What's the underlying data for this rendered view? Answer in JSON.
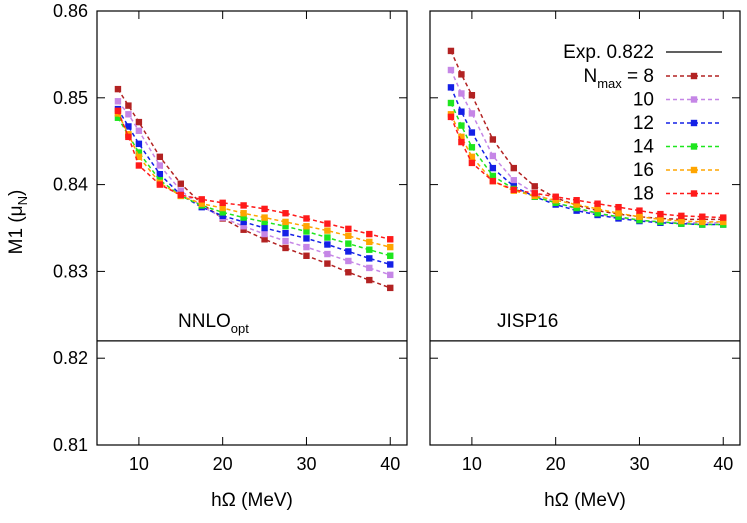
{
  "chart_data": {
    "type": "line",
    "ylabel": "M1 (μ",
    "ylabel_sub": "N",
    "ylabel_end": ")",
    "xlabel": "hΩ (MeV)",
    "xlim": [
      5,
      42
    ],
    "ylim": [
      0.81,
      0.86
    ],
    "xticks": [
      10,
      20,
      30,
      40
    ],
    "yticks": [
      0.81,
      0.82,
      0.83,
      0.84,
      0.85,
      0.86
    ],
    "ytick_labels": [
      "0.81",
      "0.82",
      "0.83",
      "0.84",
      "0.85",
      "0.86"
    ],
    "experiment": {
      "value": 0.822,
      "label": "Exp.  0.822"
    },
    "legend_title": "N",
    "legend_title_sub": "max",
    "legend_title_end": " = ",
    "legend_position": "top-right",
    "series_style": [
      {
        "name": "8",
        "color": "#b22222"
      },
      {
        "name": "10",
        "color": "#c586e6"
      },
      {
        "name": "12",
        "color": "#1420e6"
      },
      {
        "name": "14",
        "color": "#1ee61e"
      },
      {
        "name": "16",
        "color": "#ffa500"
      },
      {
        "name": "18",
        "color": "#ff1a1a"
      }
    ],
    "x": [
      7.5,
      8.75,
      10,
      12.5,
      15,
      17.5,
      20,
      22.5,
      25,
      27.5,
      30,
      32.5,
      35,
      37.5,
      40
    ],
    "panels": [
      {
        "label": "NNLO",
        "label_sub": "opt",
        "series": [
          {
            "name": "8",
            "values": [
              0.851,
              0.8491,
              0.8472,
              0.8432,
              0.8401,
              0.8378,
              0.8361,
              0.8348,
              0.8337,
              0.8327,
              0.8318,
              0.8309,
              0.8299,
              0.829,
              0.8281
            ]
          },
          {
            "name": "10",
            "values": [
              0.8496,
              0.8481,
              0.8462,
              0.8422,
              0.8393,
              0.8375,
              0.8362,
              0.8352,
              0.8343,
              0.8335,
              0.8328,
              0.832,
              0.8312,
              0.8304,
              0.8296
            ]
          },
          {
            "name": "12",
            "values": [
              0.8487,
              0.8467,
              0.8447,
              0.8412,
              0.8388,
              0.8374,
              0.8364,
              0.8357,
              0.835,
              0.8344,
              0.8338,
              0.8331,
              0.8323,
              0.8315,
              0.8308
            ]
          },
          {
            "name": "14",
            "values": [
              0.8477,
              0.8457,
              0.8437,
              0.8405,
              0.8387,
              0.8376,
              0.8368,
              0.8362,
              0.8357,
              0.8352,
              0.8346,
              0.8339,
              0.8332,
              0.8325,
              0.8318
            ]
          },
          {
            "name": "16",
            "values": [
              0.8482,
              0.8458,
              0.8432,
              0.8402,
              0.8387,
              0.8378,
              0.8373,
              0.8367,
              0.8362,
              0.8357,
              0.8352,
              0.8347,
              0.8341,
              0.8334,
              0.8328
            ]
          },
          {
            "name": "18",
            "values": [
              0.8485,
              0.8455,
              0.8422,
              0.84,
              0.8388,
              0.8383,
              0.8379,
              0.8376,
              0.8372,
              0.8367,
              0.8361,
              0.8355,
              0.8349,
              0.8343,
              0.8337
            ]
          }
        ]
      },
      {
        "label": "JISP16",
        "label_sub": "",
        "series": [
          {
            "name": "8",
            "values": [
              0.8554,
              0.8527,
              0.8503,
              0.8452,
              0.8419,
              0.8398,
              0.8385,
              0.8376,
              0.837,
              0.8366,
              0.8363,
              0.8361,
              0.836,
              0.836,
              0.836
            ]
          },
          {
            "name": "10",
            "values": [
              0.8532,
              0.8505,
              0.8482,
              0.8433,
              0.8405,
              0.839,
              0.8379,
              0.8372,
              0.8366,
              0.8362,
              0.8359,
              0.8357,
              0.8356,
              0.8356,
              0.8356
            ]
          },
          {
            "name": "12",
            "values": [
              0.8512,
              0.8484,
              0.846,
              0.8419,
              0.8398,
              0.8386,
              0.8377,
              0.837,
              0.8365,
              0.8361,
              0.8358,
              0.8356,
              0.8355,
              0.8354,
              0.8354
            ]
          },
          {
            "name": "14",
            "values": [
              0.8494,
              0.8468,
              0.8443,
              0.841,
              0.8395,
              0.8386,
              0.8379,
              0.8373,
              0.8367,
              0.8363,
              0.8359,
              0.8357,
              0.8355,
              0.8354,
              0.8354
            ]
          },
          {
            "name": "16",
            "values": [
              0.8481,
              0.8455,
              0.8432,
              0.8404,
              0.8393,
              0.8387,
              0.8382,
              0.8377,
              0.8372,
              0.8367,
              0.8363,
              0.836,
              0.8358,
              0.8357,
              0.8357
            ]
          },
          {
            "name": "18",
            "values": [
              0.8478,
              0.8449,
              0.8425,
              0.8404,
              0.8394,
              0.839,
              0.8386,
              0.8382,
              0.8378,
              0.8374,
              0.837,
              0.8366,
              0.8364,
              0.8363,
              0.8362
            ]
          }
        ]
      }
    ]
  }
}
